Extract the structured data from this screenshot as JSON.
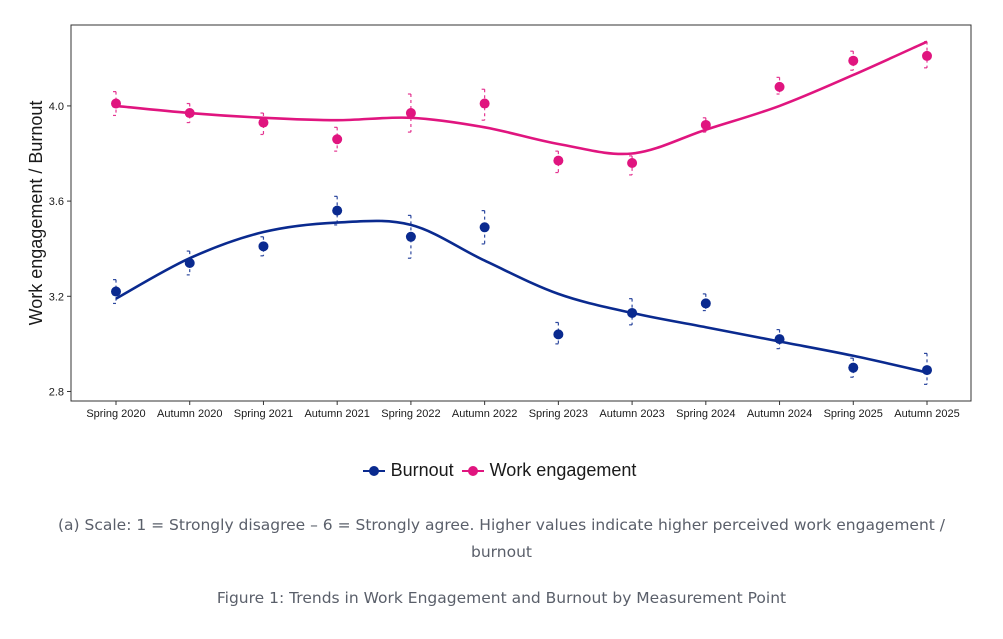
{
  "chart_data": {
    "type": "line",
    "title": "",
    "xlabel": "",
    "ylabel": "Work engagement / Burnout",
    "ylim": [
      2.76,
      4.34
    ],
    "yticks": [
      "2.8",
      "3.2",
      "3.6",
      "4.0"
    ],
    "categories": [
      "Spring 2020",
      "Autumn 2020",
      "Spring 2021",
      "Autumn 2021",
      "Spring 2022",
      "Autumn 2022",
      "Spring 2023",
      "Autumn 2023",
      "Spring 2024",
      "Autumn 2024",
      "Spring 2025",
      "Autumn 2025"
    ],
    "grid": false,
    "legend_position": "bottom",
    "series": [
      {
        "name": "Burnout",
        "color": "#0a2a8f",
        "values": [
          3.22,
          3.34,
          3.41,
          3.56,
          3.45,
          3.49,
          3.04,
          3.13,
          3.17,
          3.02,
          2.9,
          2.89
        ],
        "ci_upper": [
          3.27,
          3.39,
          3.45,
          3.62,
          3.54,
          3.56,
          3.09,
          3.19,
          3.21,
          3.06,
          2.94,
          2.96
        ],
        "ci_lower": [
          3.17,
          3.29,
          3.37,
          3.5,
          3.36,
          3.42,
          3.0,
          3.08,
          3.14,
          2.98,
          2.86,
          2.83
        ],
        "smooth": [
          3.19,
          3.36,
          3.47,
          3.51,
          3.5,
          3.35,
          3.21,
          3.13,
          3.07,
          3.01,
          2.95,
          2.88
        ]
      },
      {
        "name": "Work engagement",
        "color": "#e0157f",
        "values": [
          4.01,
          3.97,
          3.93,
          3.86,
          3.97,
          4.01,
          3.77,
          3.76,
          3.92,
          4.08,
          4.19,
          4.21
        ],
        "ci_upper": [
          4.06,
          4.01,
          3.97,
          3.91,
          4.05,
          4.07,
          3.81,
          3.79,
          3.95,
          4.12,
          4.23,
          4.27
        ],
        "ci_lower": [
          3.96,
          3.93,
          3.88,
          3.81,
          3.89,
          3.94,
          3.72,
          3.71,
          3.89,
          4.05,
          4.15,
          4.16
        ],
        "smooth": [
          4.0,
          3.97,
          3.95,
          3.94,
          3.95,
          3.91,
          3.84,
          3.8,
          3.9,
          4.0,
          4.13,
          4.27
        ]
      }
    ]
  },
  "legend": {
    "items": [
      {
        "label": "Burnout",
        "color": "#0a2a8f"
      },
      {
        "label": "Work engagement",
        "color": "#e0157f"
      }
    ]
  },
  "captions": {
    "note": "(a) Scale: 1 = Strongly disagree – 6 = Strongly agree. Higher values indicate higher perceived work engagement / burnout",
    "figure": "Figure 1: Trends in Work Engagement and Burnout by Measurement Point"
  }
}
